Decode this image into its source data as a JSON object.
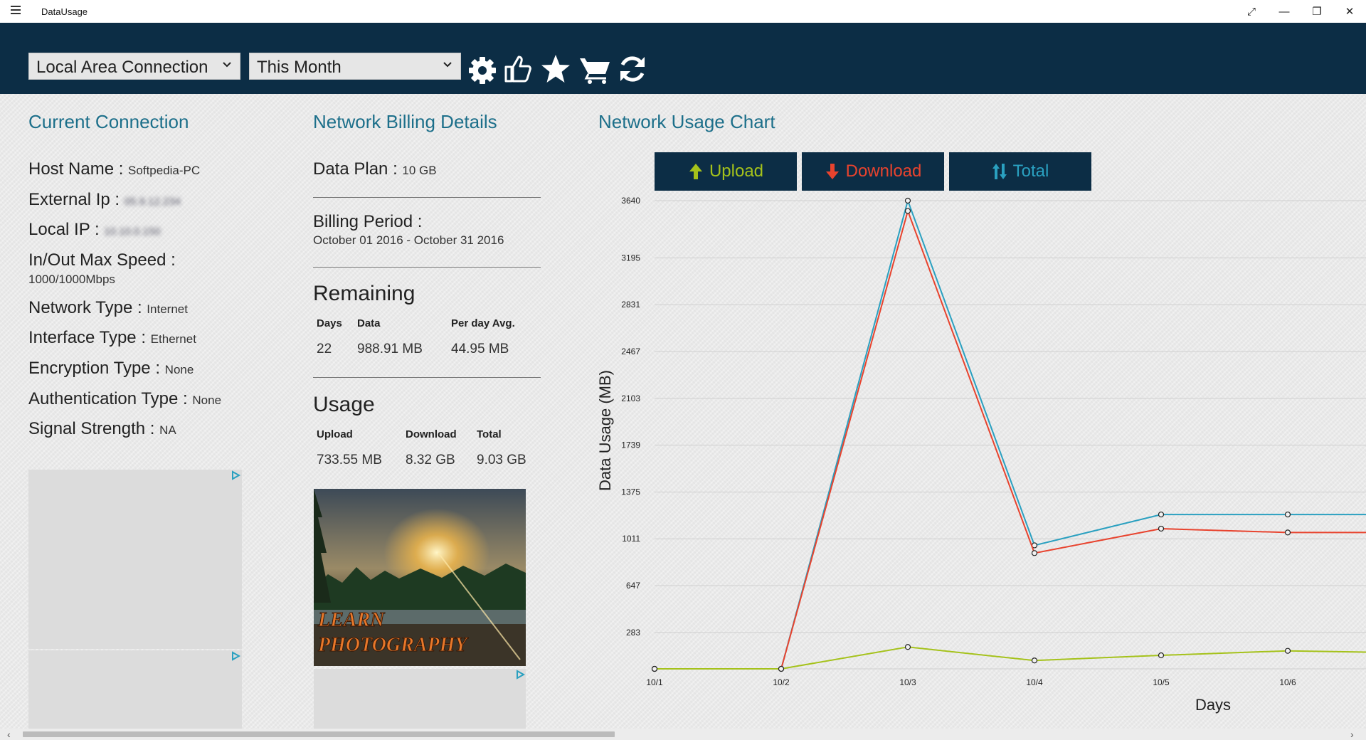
{
  "app": {
    "title": "DataUsage"
  },
  "toolbar": {
    "connection": "Local Area Connection",
    "period": "This Month"
  },
  "current": {
    "heading": "Current Connection",
    "host_label": "Host Name :",
    "host_value": "Softpedia-PC",
    "extip_label": "External Ip :",
    "extip_value": "05.9.12.234",
    "localip_label": "Local IP :",
    "localip_value": "10.10.0.150",
    "speed_label": "In/Out Max Speed :",
    "speed_value": "1000/1000Mbps",
    "nettype_label": "Network Type :",
    "nettype_value": "Internet",
    "iftype_label": "Interface Type :",
    "iftype_value": "Ethernet",
    "enc_label": "Encryption Type :",
    "enc_value": "None",
    "auth_label": "Authentication Type :",
    "auth_value": "None",
    "signal_label": "Signal Strength :",
    "signal_value": "NA"
  },
  "billing": {
    "heading": "Network Billing Details",
    "plan_label": "Data Plan :",
    "plan_value": "10 GB",
    "period_label": "Billing Period :",
    "period_value": "October 01 2016 - October 31 2016",
    "remaining_heading": "Remaining",
    "remaining_cols": [
      "Days",
      "Data",
      "Per day Avg."
    ],
    "remaining_vals": [
      "22",
      "988.91 MB",
      "44.95 MB"
    ],
    "usage_heading": "Usage",
    "usage_cols": [
      "Upload",
      "Download",
      "Total"
    ],
    "usage_vals": [
      "733.55 MB",
      "8.32 GB",
      "9.03 GB"
    ],
    "ad_line1": "LEARN",
    "ad_line2": "PHOTOGRAPHY"
  },
  "chart_section": {
    "heading": "Network Usage Chart",
    "upload_btn": "Upload",
    "download_btn": "Download",
    "total_btn": "Total"
  },
  "colors": {
    "upload": "#a5c21b",
    "download": "#e8432e",
    "total": "#2aa0c0",
    "header_bg": "#0c2d45",
    "heading": "#1c6f8a"
  },
  "chart_data": {
    "type": "line",
    "xlabel": "Days",
    "ylabel": "Data Usage (MB)",
    "categories": [
      "10/1",
      "10/2",
      "10/3",
      "10/4",
      "10/5",
      "10/6"
    ],
    "yticks": [
      283,
      647,
      1011,
      1375,
      1739,
      2103,
      2467,
      2831,
      3195,
      3640
    ],
    "ylim": [
      0,
      3640
    ],
    "grid": true,
    "series": [
      {
        "name": "Total",
        "color": "#2aa0c0",
        "values": [
          0,
          0,
          3640,
          960,
          1200,
          1200
        ]
      },
      {
        "name": "Download",
        "color": "#e8432e",
        "values": [
          0,
          0,
          3560,
          900,
          1090,
          1060
        ]
      },
      {
        "name": "Upload",
        "color": "#a5c21b",
        "values": [
          0,
          0,
          170,
          65,
          105,
          140
        ]
      }
    ]
  }
}
